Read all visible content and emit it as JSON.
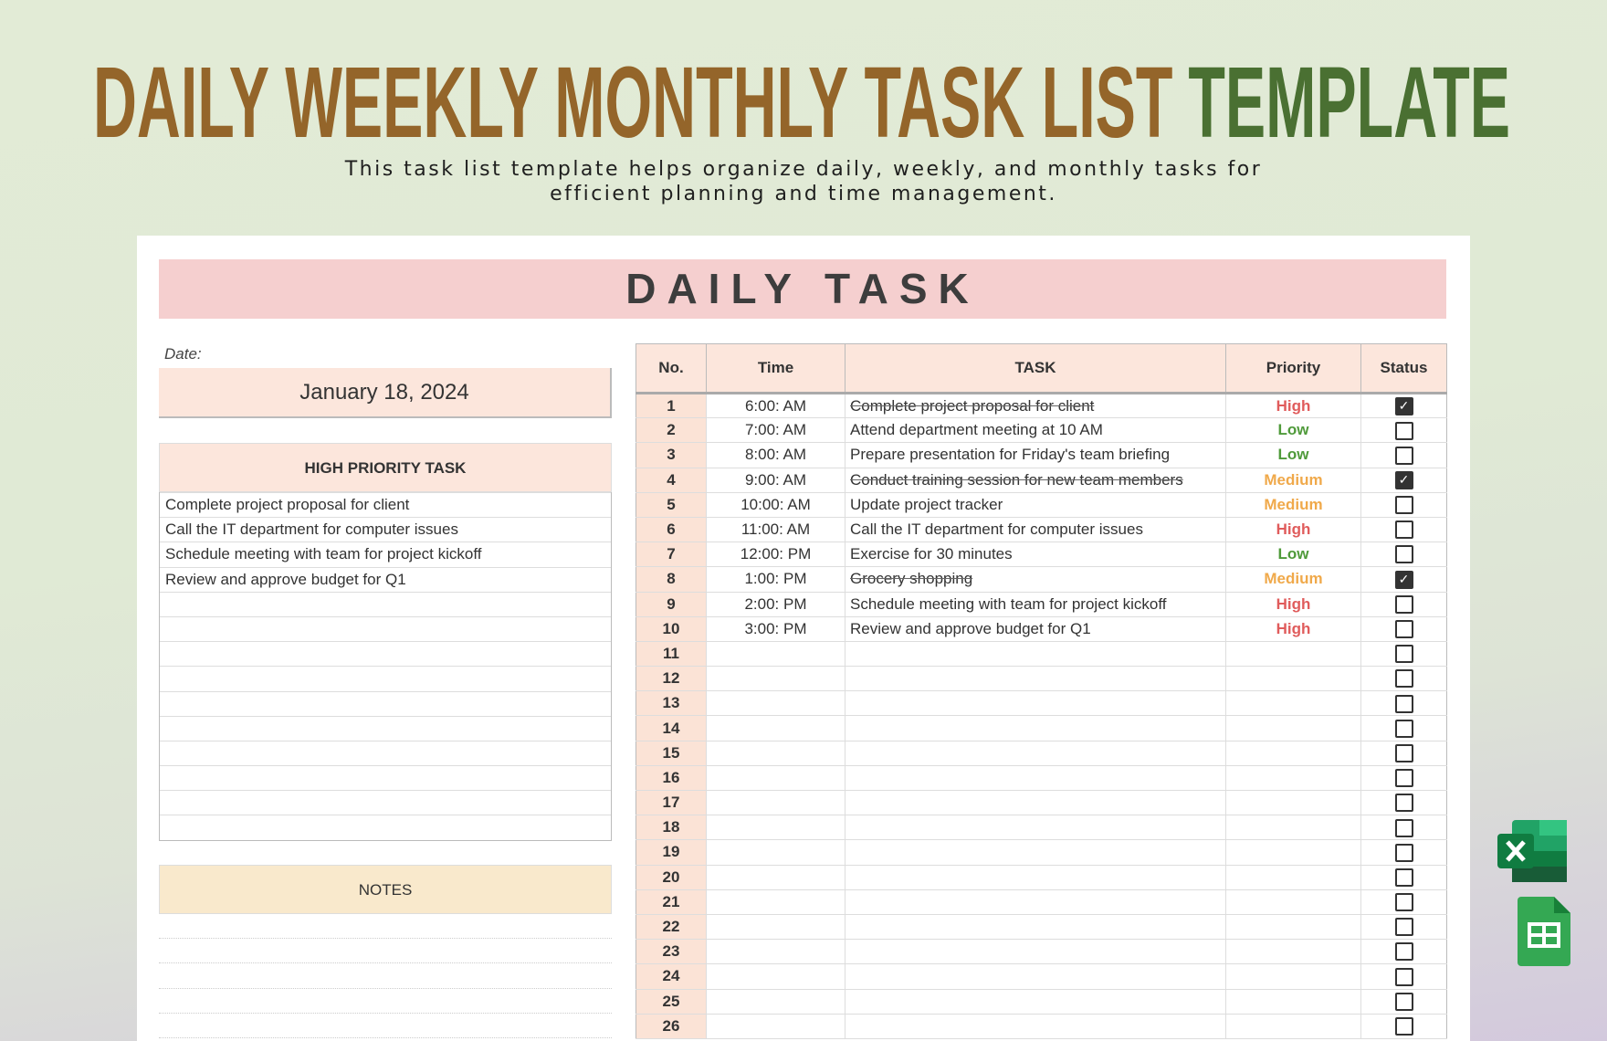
{
  "title": {
    "part1": "DAILY WEEKLY MONTHLY TASK LIST",
    "part2": "TEMPLATE"
  },
  "subtitle": {
    "line1": "This task list template helps organize daily, weekly, and monthly tasks for",
    "line2": "efficient planning and time management."
  },
  "banner": "DAILY TASK",
  "date": {
    "label": "Date:",
    "value": "January 18, 2024"
  },
  "high_priority": {
    "header": "HIGH PRIORITY TASK",
    "items": [
      "Complete project proposal for client",
      "Call the IT department for computer issues",
      "Schedule meeting with team for project kickoff",
      "Review and approve budget for Q1"
    ]
  },
  "notes": {
    "header": "NOTES"
  },
  "table": {
    "headers": [
      "No.",
      "Time",
      "TASK",
      "Priority",
      "Status"
    ],
    "rows": [
      {
        "no": "1",
        "time": "6:00: AM",
        "task": "Complete project proposal for client",
        "priority": "High",
        "done": true
      },
      {
        "no": "2",
        "time": "7:00: AM",
        "task": "Attend department meeting at 10 AM",
        "priority": "Low",
        "done": false
      },
      {
        "no": "3",
        "time": "8:00: AM",
        "task": "Prepare presentation for Friday's team briefing",
        "priority": "Low",
        "done": false
      },
      {
        "no": "4",
        "time": "9:00: AM",
        "task": "Conduct training session for new team members",
        "priority": "Medium",
        "done": true
      },
      {
        "no": "5",
        "time": "10:00: AM",
        "task": "Update project tracker",
        "priority": "Medium",
        "done": false
      },
      {
        "no": "6",
        "time": "11:00: AM",
        "task": "Call the IT department for computer issues",
        "priority": "High",
        "done": false
      },
      {
        "no": "7",
        "time": "12:00: PM",
        "task": "Exercise for 30 minutes",
        "priority": "Low",
        "done": false
      },
      {
        "no": "8",
        "time": "1:00: PM",
        "task": "Grocery shopping",
        "priority": "Medium",
        "done": true
      },
      {
        "no": "9",
        "time": "2:00: PM",
        "task": "Schedule meeting with team for project kickoff",
        "priority": "High",
        "done": false
      },
      {
        "no": "10",
        "time": "3:00: PM",
        "task": "Review and approve budget for Q1",
        "priority": "High",
        "done": false
      },
      {
        "no": "11"
      },
      {
        "no": "12"
      },
      {
        "no": "13"
      },
      {
        "no": "14"
      },
      {
        "no": "15"
      },
      {
        "no": "16"
      },
      {
        "no": "17"
      },
      {
        "no": "18"
      },
      {
        "no": "19"
      },
      {
        "no": "20"
      },
      {
        "no": "21"
      },
      {
        "no": "22"
      },
      {
        "no": "23"
      },
      {
        "no": "24"
      },
      {
        "no": "25"
      },
      {
        "no": "26"
      }
    ]
  },
  "priority_colors": {
    "High": "#e05c5c",
    "Low": "#4f9a3a",
    "Medium": "#f0a94a"
  },
  "icons": [
    "excel-icon",
    "google-sheets-icon"
  ]
}
